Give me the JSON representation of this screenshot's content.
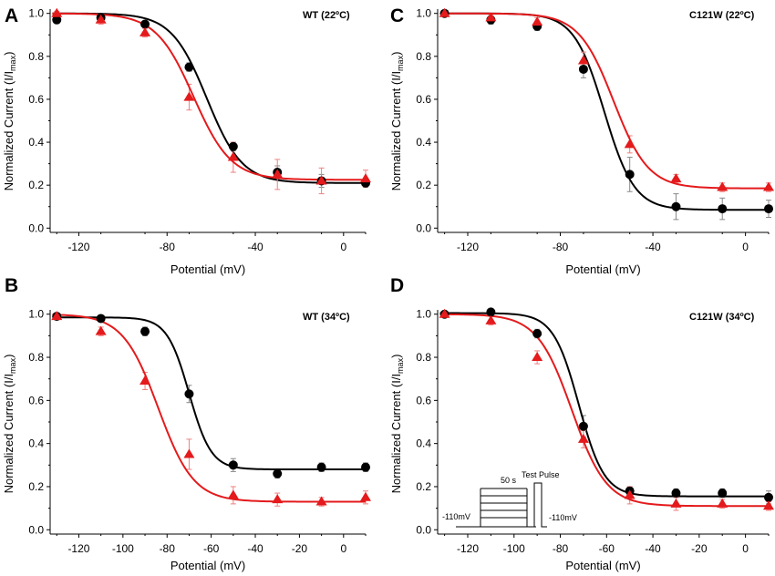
{
  "chart_data": [
    {
      "panel": "A",
      "type": "scatter",
      "title": "WT (22ºC)",
      "xlabel": "Potential (mV)",
      "ylabel_main": "Normalized Current (I/I",
      "ylabel_sub": "max",
      "ylabel_end": ")",
      "xlim": [
        -133,
        10
      ],
      "ylim": [
        -0.02,
        1.02
      ],
      "xticks": [
        -120,
        -80,
        -40,
        0
      ],
      "xtick_labels": [
        "-120",
        "-80",
        "-40",
        "0"
      ],
      "yticks": [
        0.0,
        0.2,
        0.4,
        0.6,
        0.8,
        1.0
      ],
      "ytick_labels": [
        "0.0",
        "0.2",
        "0.4",
        "0.6",
        "0.8",
        "1.0"
      ],
      "series": [
        {
          "name": "black",
          "color": "#000000",
          "marker": "circle",
          "x": [
            -130,
            -110,
            -90,
            -70,
            -50,
            -30,
            -10,
            10
          ],
          "y": [
            0.97,
            0.98,
            0.95,
            0.75,
            0.38,
            0.26,
            0.22,
            0.21
          ],
          "err": [
            0.01,
            0.01,
            0.01,
            0.02,
            0.02,
            0.03,
            0.03,
            0.02
          ],
          "fit": {
            "bottom": 0.21,
            "top": 1.0,
            "v_half": -62,
            "k": 8
          }
        },
        {
          "name": "red",
          "color": "#e41a1c",
          "marker": "triangle",
          "x": [
            -130,
            -110,
            -90,
            -70,
            -50,
            -30,
            -10,
            10
          ],
          "y": [
            1.0,
            0.97,
            0.91,
            0.61,
            0.33,
            0.25,
            0.22,
            0.23
          ],
          "err": [
            0.01,
            0.02,
            0.02,
            0.06,
            0.07,
            0.07,
            0.06,
            0.04
          ],
          "fit": {
            "bottom": 0.225,
            "top": 1.0,
            "v_half": -68,
            "k": 8.5
          }
        }
      ]
    },
    {
      "panel": "C",
      "type": "scatter",
      "title": "C121W (22ºC)",
      "xlabel": "Potential (mV)",
      "ylabel_main": "Normalized Current (I/I",
      "ylabel_sub": "max",
      "ylabel_end": ")",
      "xlim": [
        -133,
        10
      ],
      "ylim": [
        -0.02,
        1.02
      ],
      "xticks": [
        -120,
        -80,
        -40,
        0
      ],
      "xtick_labels": [
        "-120",
        "-80",
        "-40",
        "0"
      ],
      "yticks": [
        0.0,
        0.2,
        0.4,
        0.6,
        0.8,
        1.0
      ],
      "ytick_labels": [
        "0.0",
        "0.2",
        "0.4",
        "0.6",
        "0.8",
        "1.0"
      ],
      "series": [
        {
          "name": "black",
          "color": "#000000",
          "marker": "circle",
          "x": [
            -130,
            -110,
            -90,
            -70,
            -50,
            -30,
            -10,
            10
          ],
          "y": [
            1.0,
            0.97,
            0.94,
            0.74,
            0.25,
            0.1,
            0.09,
            0.09
          ],
          "err": [
            0.01,
            0.02,
            0.02,
            0.04,
            0.08,
            0.06,
            0.05,
            0.04
          ],
          "fit": {
            "bottom": 0.085,
            "top": 1.0,
            "v_half": -61,
            "k": 6.5
          }
        },
        {
          "name": "red",
          "color": "#e41a1c",
          "marker": "triangle",
          "x": [
            -130,
            -110,
            -90,
            -70,
            -50,
            -30,
            -10,
            10
          ],
          "y": [
            1.0,
            0.98,
            0.96,
            0.78,
            0.39,
            0.23,
            0.19,
            0.19
          ],
          "err": [
            0.01,
            0.02,
            0.02,
            0.04,
            0.04,
            0.02,
            0.02,
            0.02
          ],
          "fit": {
            "bottom": 0.185,
            "top": 1.0,
            "v_half": -57,
            "k": 7.5
          }
        }
      ]
    },
    {
      "panel": "B",
      "type": "scatter",
      "title": "WT (34ºC)",
      "xlabel": "Potential (mV)",
      "ylabel_main": "Normalized Current (I/I",
      "ylabel_sub": "max",
      "ylabel_end": ")",
      "xlim": [
        -133,
        10
      ],
      "ylim": [
        -0.02,
        1.02
      ],
      "xticks": [
        -120,
        -100,
        -80,
        -60,
        -40,
        -20,
        0
      ],
      "xtick_labels": [
        "-120",
        "-100",
        "-80",
        "-60",
        "-40",
        "-20",
        "0"
      ],
      "yticks": [
        0.0,
        0.2,
        0.4,
        0.6,
        0.8,
        1.0
      ],
      "ytick_labels": [
        "0.0",
        "0.2",
        "0.4",
        "0.6",
        "0.8",
        "1.0"
      ],
      "series": [
        {
          "name": "black",
          "color": "#000000",
          "marker": "circle",
          "x": [
            -130,
            -110,
            -90,
            -70,
            -50,
            -30,
            -10,
            10
          ],
          "y": [
            0.99,
            0.98,
            0.92,
            0.63,
            0.3,
            0.26,
            0.29,
            0.29
          ],
          "err": [
            0.01,
            0.01,
            0.02,
            0.04,
            0.03,
            0.02,
            0.02,
            0.02
          ],
          "fit": {
            "bottom": 0.28,
            "top": 0.985,
            "v_half": -70,
            "k": 5
          }
        },
        {
          "name": "red",
          "color": "#e41a1c",
          "marker": "triangle",
          "x": [
            -130,
            -110,
            -90,
            -70,
            -50,
            -30,
            -10,
            10
          ],
          "y": [
            0.99,
            0.92,
            0.69,
            0.35,
            0.16,
            0.14,
            0.13,
            0.15
          ],
          "err": [
            0.01,
            0.02,
            0.04,
            0.07,
            0.04,
            0.03,
            0.02,
            0.03
          ],
          "fit": {
            "bottom": 0.13,
            "top": 1.0,
            "v_half": -84,
            "k": 8
          }
        }
      ]
    },
    {
      "panel": "D",
      "type": "scatter",
      "title": "C121W (34ºC)",
      "xlabel": "Potential (mV)",
      "ylabel_main": "Normalized Current (I/I",
      "ylabel_sub": "max",
      "ylabel_end": ")",
      "xlim": [
        -133,
        10
      ],
      "ylim": [
        -0.02,
        1.02
      ],
      "xticks": [
        -120,
        -100,
        -80,
        -60,
        -40,
        -20,
        0
      ],
      "xtick_labels": [
        "-120",
        "-100",
        "-80",
        "-60",
        "-40",
        "-20",
        "0"
      ],
      "yticks": [
        0.0,
        0.2,
        0.4,
        0.6,
        0.8,
        1.0
      ],
      "ytick_labels": [
        "0.0",
        "0.2",
        "0.4",
        "0.6",
        "0.8",
        "1.0"
      ],
      "series": [
        {
          "name": "black",
          "color": "#000000",
          "marker": "circle",
          "x": [
            -130,
            -110,
            -90,
            -70,
            -50,
            -30,
            -10,
            10
          ],
          "y": [
            1.0,
            1.01,
            0.91,
            0.48,
            0.18,
            0.17,
            0.17,
            0.15
          ],
          "err": [
            0.01,
            0.01,
            0.02,
            0.05,
            0.02,
            0.02,
            0.02,
            0.03
          ],
          "fit": {
            "bottom": 0.155,
            "top": 1.005,
            "v_half": -72,
            "k": 5.5
          }
        },
        {
          "name": "red",
          "color": "#e41a1c",
          "marker": "triangle",
          "x": [
            -130,
            -110,
            -90,
            -70,
            -50,
            -30,
            -10,
            10
          ],
          "y": [
            1.0,
            0.97,
            0.8,
            0.42,
            0.16,
            0.12,
            0.12,
            0.11
          ],
          "err": [
            0.01,
            0.02,
            0.03,
            0.04,
            0.04,
            0.03,
            0.02,
            0.02
          ],
          "fit": {
            "bottom": 0.11,
            "top": 1.0,
            "v_half": -75,
            "k": 7.5
          }
        }
      ],
      "inset": {
        "pre_label": "-110mV",
        "duration_label": "50 s",
        "test_label": "Test Pulse",
        "post_label": "-110mV"
      }
    }
  ]
}
